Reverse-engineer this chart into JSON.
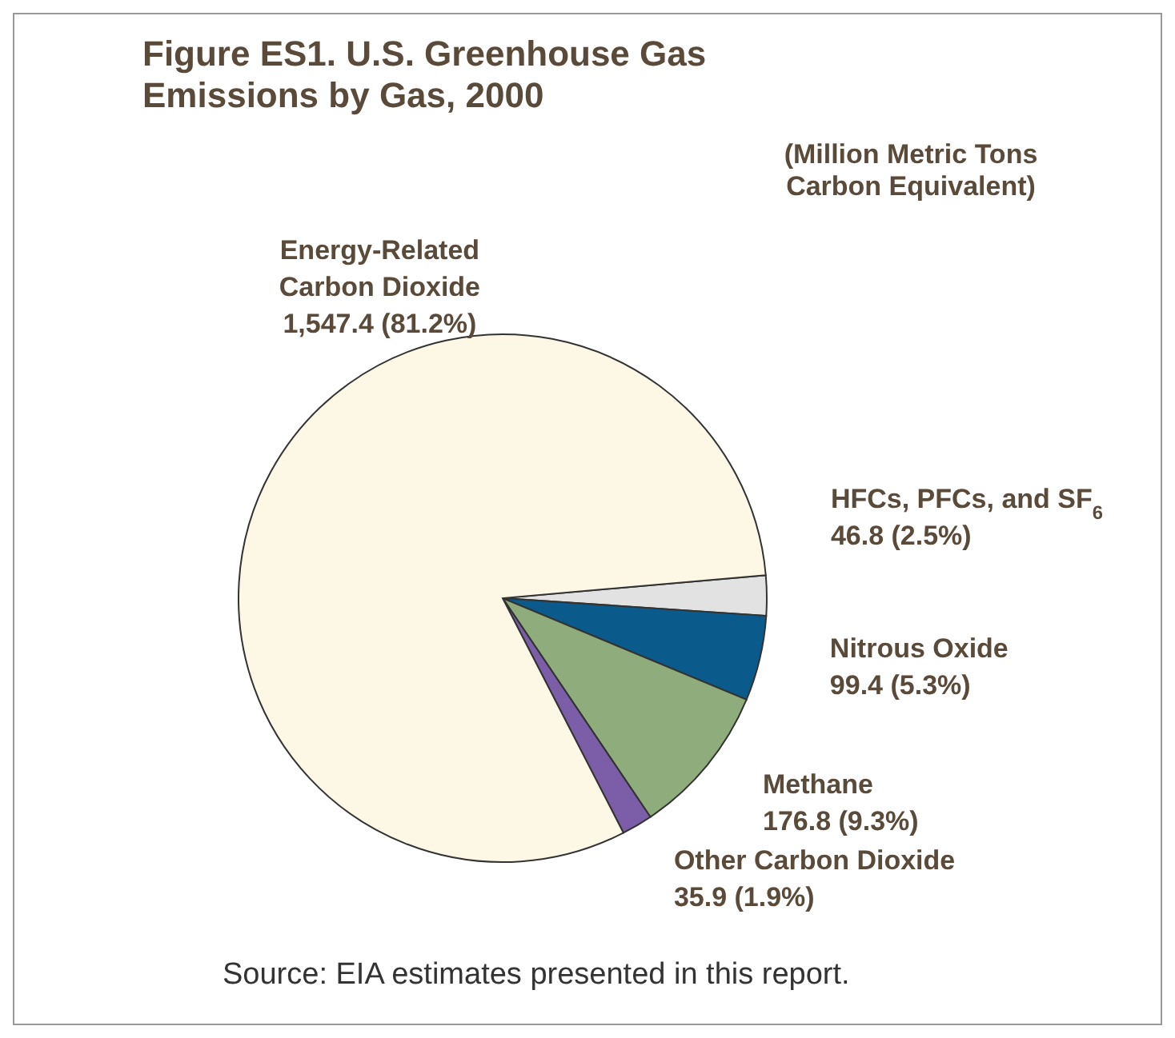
{
  "chart_data": {
    "type": "pie",
    "title": "Figure ES1.  U.S. Greenhouse Gas Emissions by Gas, 2000",
    "subtitle": "(Million Metric Tons Carbon Equivalent)",
    "categories": [
      "HFCs, PFCs, and SF$_{6}$",
      "Nitrous Oxide",
      "Methane",
      "Other Carbon Dioxide",
      "Energy-Related Carbon Dioxide"
    ],
    "values": [
      46.8,
      99.4,
      176.8,
      35.9,
      1547.4
    ],
    "colors": [
      "#e2e2e2",
      "#0b5a8c",
      "#8fad7c",
      "#7b5ea7",
      "#fdf8e6"
    ],
    "value_labels": [
      "46.8  (2.5%)",
      "99.4 (5.3%)",
      "176.8 (9.3%)",
      "35.9  (1.9%)",
      "1,547.4 (81.2%)"
    ],
    "annotations": [
      "Source: EIA estimates presented in this report."
    ]
  }
}
